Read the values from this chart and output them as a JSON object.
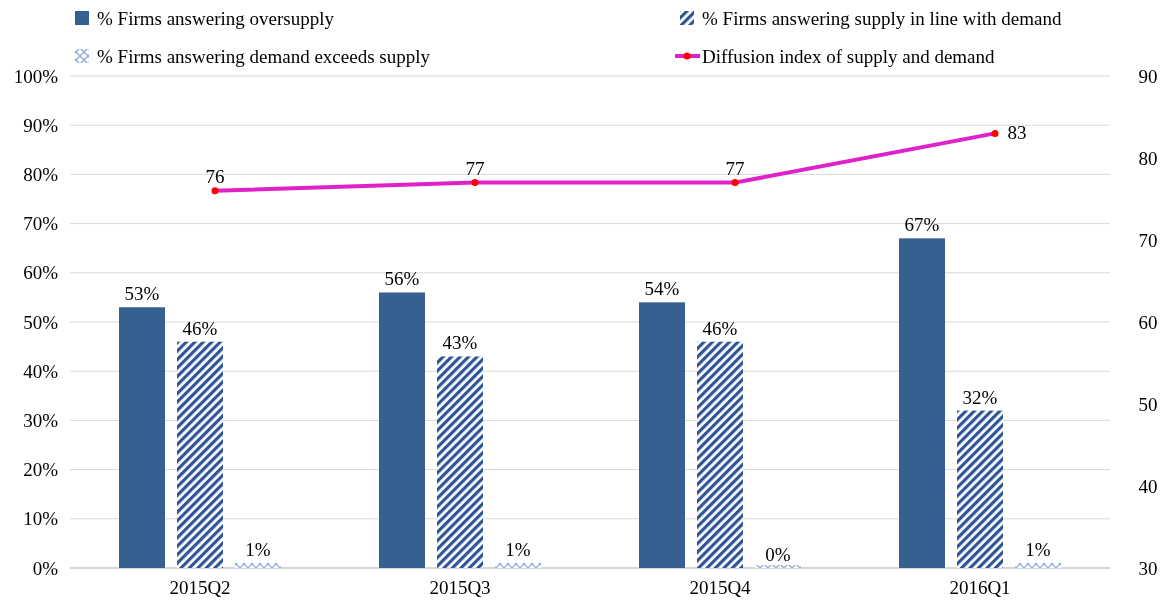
{
  "chart_data": {
    "type": "bar",
    "categories": [
      "2015Q2",
      "2015Q3",
      "2015Q4",
      "2016Q1"
    ],
    "series": [
      {
        "name": "% Firms answering oversupply",
        "color": "#35608f",
        "values": [
          53,
          56,
          54,
          67
        ],
        "value_labels": [
          "53%",
          "56%",
          "54%",
          "67%"
        ]
      },
      {
        "name": "% Firms answering supply in line with demand",
        "color": "#2f5597",
        "values": [
          46,
          43,
          46,
          32
        ],
        "value_labels": [
          "46%",
          "43%",
          "46%",
          "32%"
        ]
      },
      {
        "name": "% Firms answering demand exceeds supply",
        "color": "#8faadc",
        "values": [
          1,
          1,
          0,
          1
        ],
        "value_labels": [
          "1%",
          "1%",
          "0%",
          "1%"
        ]
      },
      {
        "name": "Diffusion index of supply and demand",
        "type": "line",
        "axis": "y2",
        "color": "#e020c8",
        "values": [
          76,
          77,
          77,
          83
        ],
        "value_labels": [
          "76",
          "77",
          "77",
          "83"
        ]
      }
    ],
    "ylim": [
      0,
      100
    ],
    "yticks": [
      {
        "value": 0,
        "label": "0%"
      },
      {
        "value": 10,
        "label": "10%"
      },
      {
        "value": 20,
        "label": "20%"
      },
      {
        "value": 30,
        "label": "30%"
      },
      {
        "value": 40,
        "label": "40%"
      },
      {
        "value": 50,
        "label": "50%"
      },
      {
        "value": 60,
        "label": "60%"
      },
      {
        "value": 70,
        "label": "70%"
      },
      {
        "value": 80,
        "label": "80%"
      },
      {
        "value": 90,
        "label": "90%"
      },
      {
        "value": 100,
        "label": "100%"
      }
    ],
    "y2lim": [
      30,
      90
    ],
    "y2ticks": [
      30,
      40,
      50,
      60,
      70,
      80,
      90
    ],
    "grid": "y",
    "legend": "top",
    "marker": "circle",
    "line_style": "solid"
  }
}
